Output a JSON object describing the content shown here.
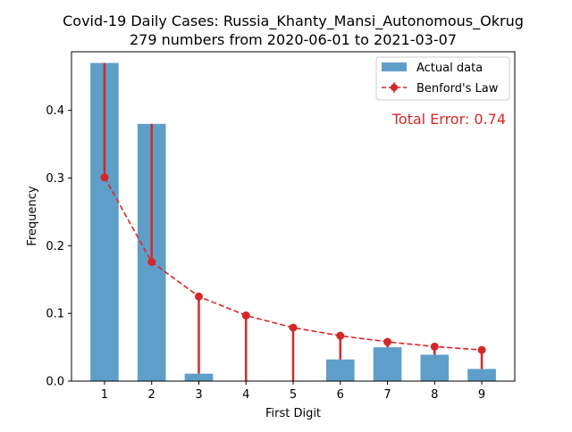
{
  "chart_data": {
    "type": "bar",
    "title": "Covid-19 Daily Cases: Russia_Khanty_Mansi_Autonomous_Okrug",
    "subtitle": "279 numbers from 2020-06-01 to 2021-03-07",
    "xlabel": "First Digit",
    "ylabel": "Frequency",
    "categories": [
      "1",
      "2",
      "3",
      "4",
      "5",
      "6",
      "7",
      "8",
      "9"
    ],
    "x": [
      1,
      2,
      3,
      4,
      5,
      6,
      7,
      8,
      9
    ],
    "xlim": [
      0.3,
      9.7
    ],
    "ylim": [
      0,
      0.4865
    ],
    "yticks": [
      0.0,
      0.1,
      0.2,
      0.3,
      0.4
    ],
    "ytick_labels": [
      "0.0",
      "0.1",
      "0.2",
      "0.3",
      "0.4"
    ],
    "series": [
      {
        "name": "Actual data",
        "kind": "bar",
        "color": "#5f9ec9",
        "values": [
          0.47,
          0.38,
          0.011,
          0.0,
          0.0,
          0.032,
          0.05,
          0.039,
          0.018
        ]
      },
      {
        "name": "Benford's Law",
        "kind": "line",
        "color": "#d62728",
        "style": "dashed",
        "values": [
          0.301,
          0.176,
          0.125,
          0.097,
          0.079,
          0.067,
          0.058,
          0.051,
          0.046
        ]
      }
    ],
    "annotation": "Total Error: 0.74",
    "annotation_color": "#d62728",
    "legend_position": "top-right",
    "grid": false
  }
}
